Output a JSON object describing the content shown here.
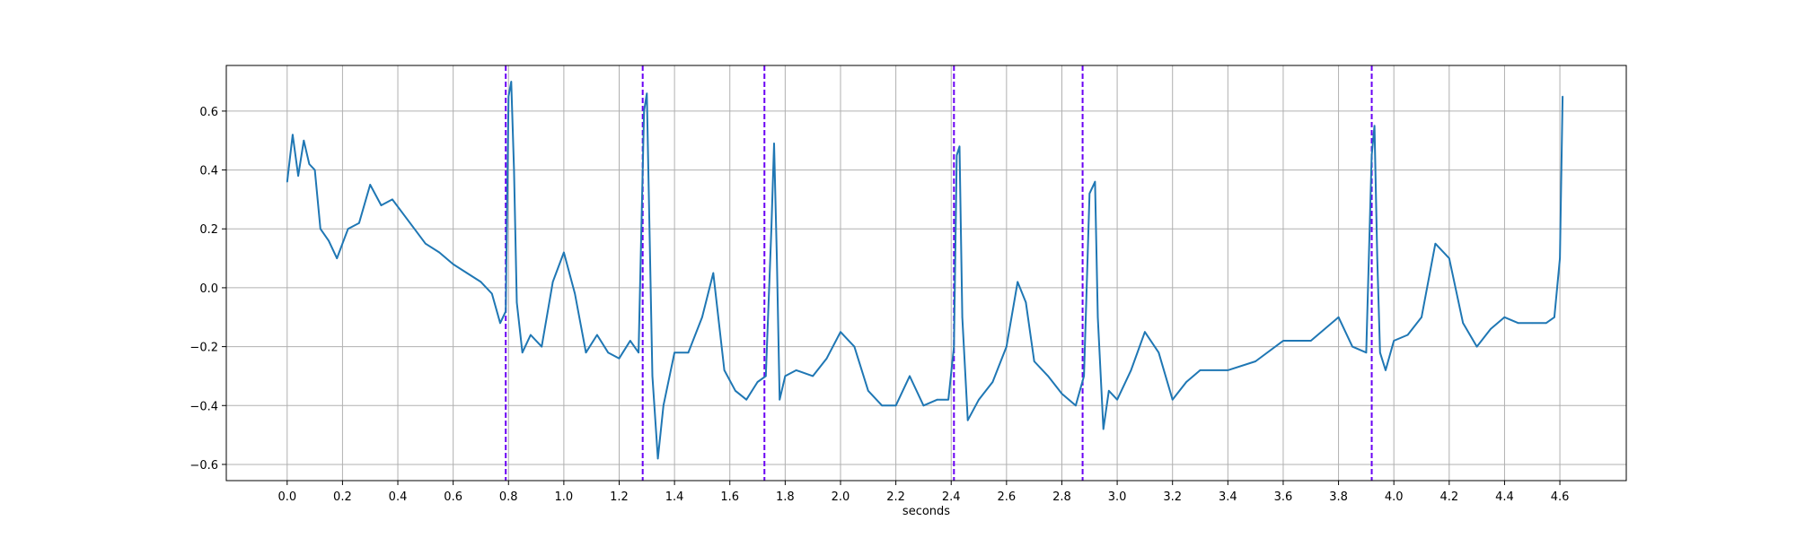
{
  "chart_data": {
    "type": "line",
    "title": "",
    "xlabel": "seconds",
    "ylabel": "",
    "xlim": [
      -0.22,
      4.84
    ],
    "ylim": [
      -0.655,
      0.755
    ],
    "grid": true,
    "x_ticks": [
      0.0,
      0.2,
      0.4,
      0.6,
      0.8,
      1.0,
      1.2,
      1.4,
      1.6,
      1.8,
      2.0,
      2.2,
      2.4,
      2.6,
      2.8,
      3.0,
      3.2,
      3.4,
      3.6,
      3.8,
      4.0,
      4.2,
      4.4,
      4.6
    ],
    "x_tick_labels": [
      "0.0",
      "0.2",
      "0.4",
      "0.6",
      "0.8",
      "1.0",
      "1.2",
      "1.4",
      "1.6",
      "1.8",
      "2.0",
      "2.2",
      "2.4",
      "2.6",
      "2.8",
      "3.0",
      "3.2",
      "3.4",
      "3.6",
      "3.8",
      "4.0",
      "4.2",
      "4.4",
      "4.6"
    ],
    "y_ticks": [
      0.6,
      0.4,
      0.2,
      0.0,
      -0.2,
      -0.4,
      -0.6
    ],
    "y_tick_labels": [
      "0.6",
      "0.4",
      "0.2",
      "0.0",
      "−0.2",
      "−0.4",
      "−0.6"
    ],
    "colors": {
      "signal": "#1f77b4",
      "markers": "#6a00f4",
      "grid": "#b0b0b0"
    },
    "series": [
      {
        "style": "solid",
        "x": [
          0.0,
          0.02,
          0.04,
          0.06,
          0.08,
          0.1,
          0.12,
          0.15,
          0.18,
          0.22,
          0.26,
          0.3,
          0.34,
          0.38,
          0.42,
          0.46,
          0.5,
          0.55,
          0.6,
          0.65,
          0.7,
          0.74,
          0.77,
          0.79,
          0.8,
          0.81,
          0.82,
          0.83,
          0.85,
          0.88,
          0.92,
          0.96,
          1.0,
          1.04,
          1.08,
          1.12,
          1.16,
          1.2,
          1.24,
          1.27,
          1.29,
          1.3,
          1.32,
          1.34,
          1.36,
          1.4,
          1.45,
          1.5,
          1.54,
          1.58,
          1.62,
          1.66,
          1.7,
          1.73,
          1.75,
          1.76,
          1.77,
          1.78,
          1.8,
          1.84,
          1.9,
          1.95,
          2.0,
          2.05,
          2.1,
          2.15,
          2.2,
          2.25,
          2.3,
          2.35,
          2.39,
          2.41,
          2.42,
          2.43,
          2.44,
          2.46,
          2.5,
          2.55,
          2.6,
          2.64,
          2.67,
          2.7,
          2.75,
          2.8,
          2.85,
          2.88,
          2.9,
          2.92,
          2.93,
          2.95,
          2.97,
          3.0,
          3.05,
          3.1,
          3.15,
          3.2,
          3.25,
          3.3,
          3.4,
          3.5,
          3.6,
          3.7,
          3.8,
          3.85,
          3.9,
          3.92,
          3.93,
          3.94,
          3.95,
          3.97,
          4.0,
          4.05,
          4.1,
          4.15,
          4.2,
          4.25,
          4.3,
          4.35,
          4.4,
          4.45,
          4.5,
          4.55,
          4.58,
          4.6,
          4.61
        ],
        "y": [
          0.36,
          0.52,
          0.38,
          0.5,
          0.42,
          0.4,
          0.2,
          0.16,
          0.1,
          0.2,
          0.22,
          0.35,
          0.28,
          0.3,
          0.25,
          0.2,
          0.15,
          0.12,
          0.08,
          0.05,
          0.02,
          -0.02,
          -0.12,
          -0.08,
          0.65,
          0.7,
          0.4,
          -0.05,
          -0.22,
          -0.16,
          -0.2,
          0.02,
          0.12,
          -0.02,
          -0.22,
          -0.16,
          -0.22,
          -0.24,
          -0.18,
          -0.22,
          0.6,
          0.66,
          -0.3,
          -0.58,
          -0.4,
          -0.22,
          -0.22,
          -0.1,
          0.05,
          -0.28,
          -0.35,
          -0.38,
          -0.32,
          -0.3,
          0.2,
          0.49,
          0.1,
          -0.38,
          -0.3,
          -0.28,
          -0.3,
          -0.24,
          -0.15,
          -0.2,
          -0.35,
          -0.4,
          -0.4,
          -0.3,
          -0.4,
          -0.38,
          -0.38,
          -0.2,
          0.45,
          0.48,
          -0.1,
          -0.45,
          -0.38,
          -0.32,
          -0.2,
          0.02,
          -0.05,
          -0.25,
          -0.3,
          -0.36,
          -0.4,
          -0.3,
          0.32,
          0.36,
          -0.1,
          -0.48,
          -0.35,
          -0.38,
          -0.28,
          -0.15,
          -0.22,
          -0.38,
          -0.32,
          -0.28,
          -0.28,
          -0.25,
          -0.18,
          -0.18,
          -0.1,
          -0.2,
          -0.22,
          0.45,
          0.55,
          0.1,
          -0.22,
          -0.28,
          -0.18,
          -0.16,
          -0.1,
          0.15,
          0.1,
          -0.12,
          -0.2,
          -0.14,
          -0.1,
          -0.12,
          -0.12,
          -0.12,
          -0.1,
          0.1,
          0.65
        ]
      }
    ],
    "vertical_markers": {
      "style": "dashed",
      "x": [
        0.79,
        1.285,
        1.725,
        2.41,
        2.875,
        3.92
      ]
    }
  }
}
